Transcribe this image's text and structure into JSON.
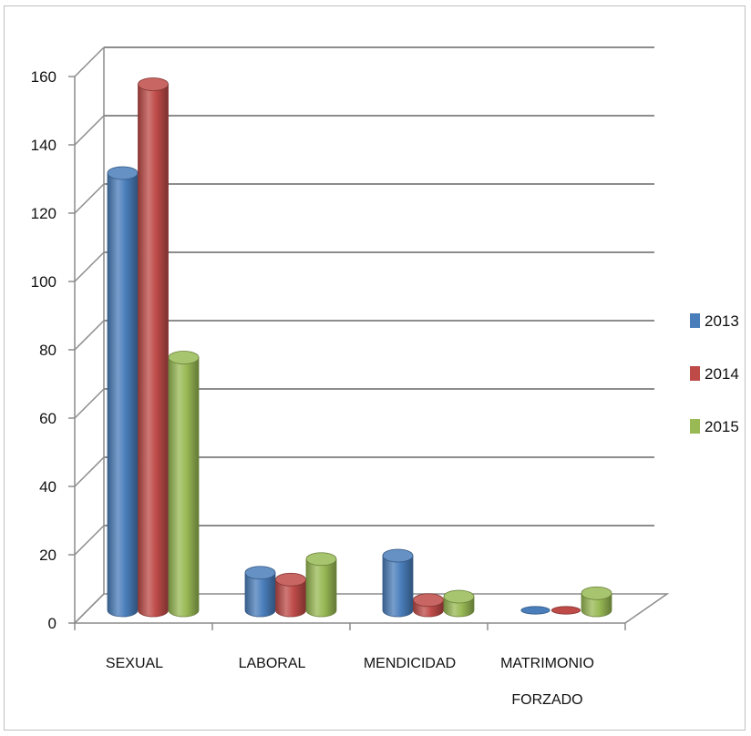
{
  "chart_data": {
    "type": "bar",
    "style": "3d-clustered-cylinder",
    "title": "",
    "xlabel": "",
    "ylabel": "",
    "ylim": [
      0,
      160
    ],
    "yticks": [
      0,
      20,
      40,
      60,
      80,
      100,
      120,
      140,
      160
    ],
    "grid": true,
    "legend_position": "right",
    "categories": [
      [
        "SEXUAL"
      ],
      [
        "LABORAL"
      ],
      [
        "MENDICIDAD"
      ],
      [
        "MATRIMONIO",
        "FORZADO"
      ]
    ],
    "series": [
      {
        "name": "2013",
        "color": "#4a7ebb",
        "values": [
          128,
          11,
          16,
          0
        ]
      },
      {
        "name": "2014",
        "color": "#be4b48",
        "values": [
          154,
          9,
          3,
          0
        ]
      },
      {
        "name": "2015",
        "color": "#98b954",
        "values": [
          74,
          15,
          4,
          5
        ]
      }
    ]
  }
}
